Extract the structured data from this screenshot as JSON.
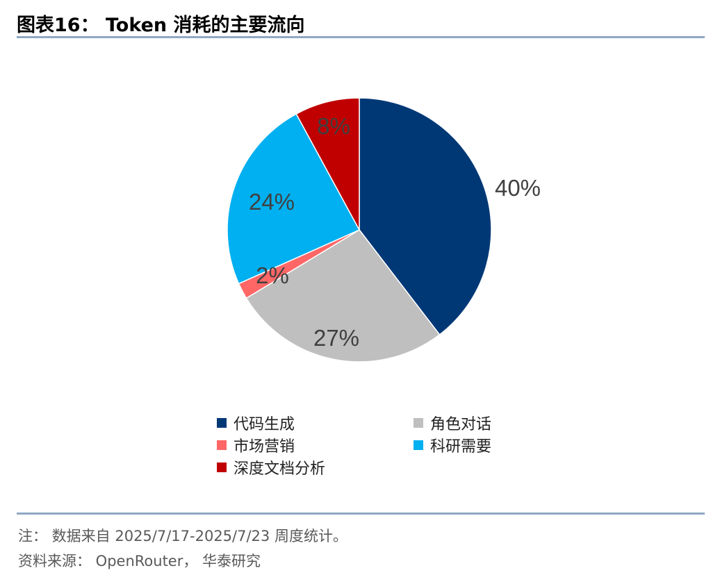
{
  "title": "图表16：  Token 消耗的主要流向",
  "chart_data": {
    "type": "pie",
    "categories": [
      "代码生成",
      "角色对话",
      "市场营销",
      "科研需要",
      "深度文档分析"
    ],
    "values": [
      40,
      27,
      2,
      24,
      8
    ],
    "labels": [
      "40%",
      "27%",
      "2%",
      "24%",
      "8%"
    ],
    "colors": [
      "#003876",
      "#BFBFBF",
      "#FF6666",
      "#00B0F0",
      "#C00000"
    ],
    "start": "12 o'clock, clockwise",
    "legend": "bottom"
  },
  "note": "注：  数据来自 2025/7/17-2025/7/23 周度统计。",
  "source": "资料来源：  OpenRouter，  华泰研究"
}
